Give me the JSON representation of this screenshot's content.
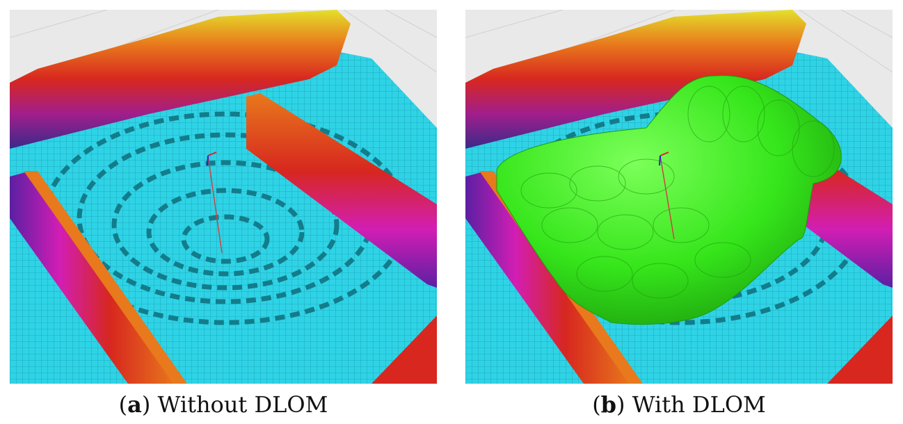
{
  "figure": {
    "panel_a": {
      "label": "a",
      "caption": "Without DLOM"
    },
    "panel_b": {
      "label": "b",
      "caption": "With DLOM"
    }
  },
  "colors": {
    "background": "#e9e9e9",
    "grid_line": "#cfcfcf",
    "floor_cyan": "#2fd3e6",
    "floor_teal": "#1aa7b8",
    "floor_dark": "#137c8b",
    "wall_orange": "#e8791c",
    "wall_red": "#d7271f",
    "wall_magenta": "#d21eb4",
    "wall_purple": "#5b1fa3",
    "wall_yellow": "#e4e02a",
    "spheres_green": "#36e61b"
  },
  "icons": [
    "axis-marker-icon"
  ]
}
